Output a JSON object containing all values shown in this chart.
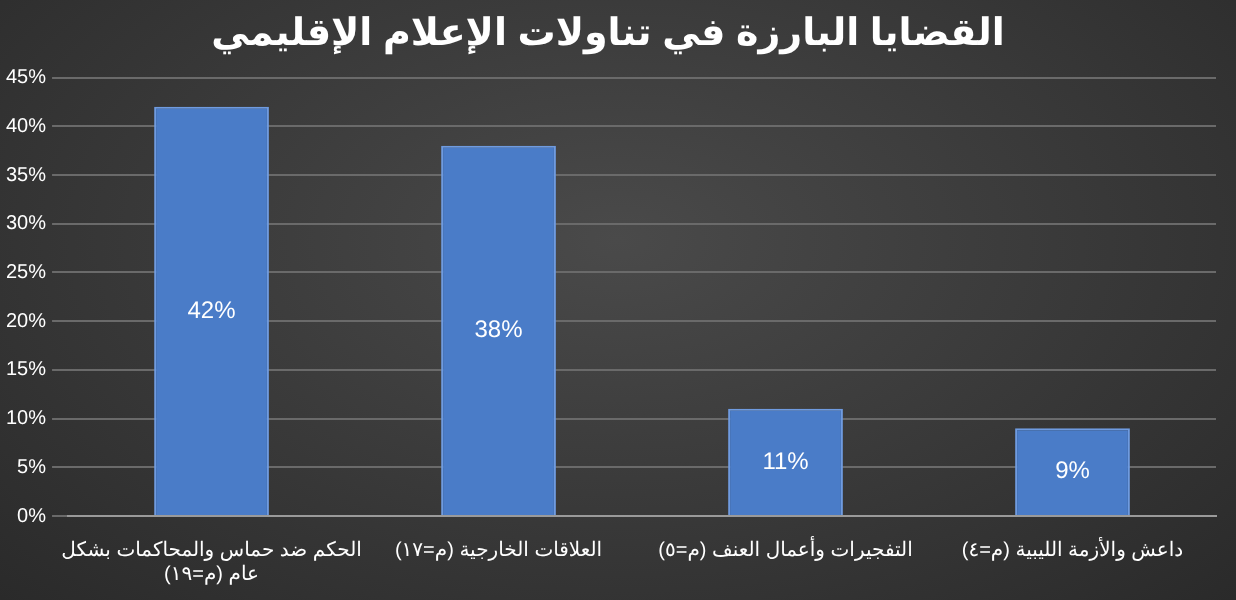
{
  "chart_data": {
    "type": "bar",
    "title": "القضايا البارزة في تناولات الإعلام الإقليمي",
    "categories": [
      "الحكم ضد حماس والمحاكمات بشكل عام (م=١٩)",
      "العلاقات الخارجية (م=١٧)",
      "التفجيرات وأعمال العنف (م=٥)",
      "داعش والأزمة الليبية (م=٤)"
    ],
    "values": [
      42,
      38,
      11,
      9
    ],
    "color": "#4a7cc8",
    "value_labels": [
      "42%",
      "38%",
      "11%",
      "9%"
    ],
    "ylim": [
      0,
      45
    ],
    "yticks": [
      {
        "value": 0,
        "label": "0%"
      },
      {
        "value": 5,
        "label": "5%"
      },
      {
        "value": 10,
        "label": "10%"
      },
      {
        "value": 15,
        "label": "15%"
      },
      {
        "value": 20,
        "label": "20%"
      },
      {
        "value": 25,
        "label": "25%"
      },
      {
        "value": 30,
        "label": "30%"
      },
      {
        "value": 35,
        "label": "35%"
      },
      {
        "value": 40,
        "label": "40%"
      },
      {
        "value": 45,
        "label": "45%"
      }
    ],
    "grid": "y"
  }
}
